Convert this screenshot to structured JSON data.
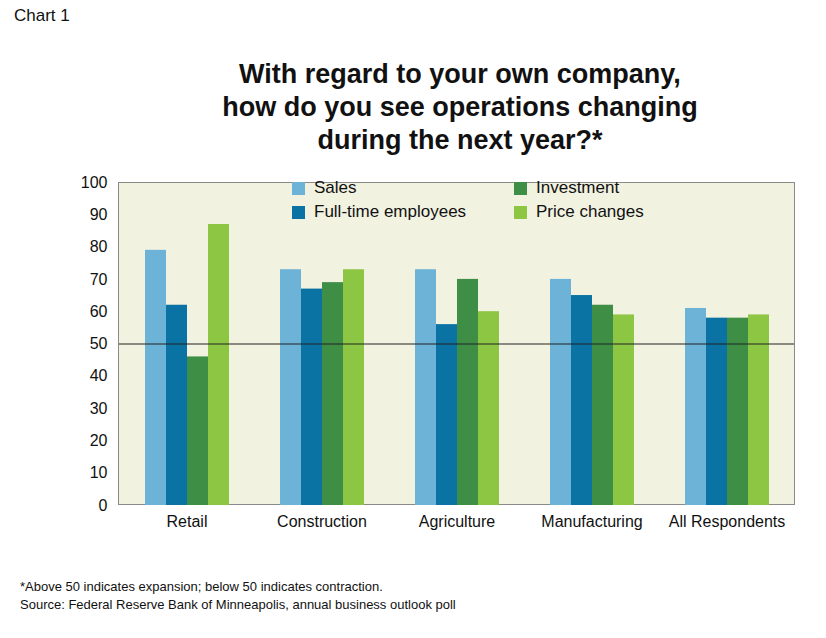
{
  "chart_data": {
    "type": "bar",
    "chart_label": "Chart 1",
    "title": "With regard to your own company,\nhow do you see operations changing\nduring the next year?*",
    "note": "*Above 50 indicates expansion; below 50 indicates contraction.",
    "source": "Source: Federal Reserve Bank of Minneapolis, annual business outlook poll",
    "categories": [
      "Retail",
      "Construction",
      "Agriculture",
      "Manufacturing",
      "All Respondents"
    ],
    "series": [
      {
        "name": "Sales",
        "color": "#6db3d8",
        "values": [
          79,
          73,
          73,
          70,
          61
        ]
      },
      {
        "name": "Full-time employees",
        "color": "#0a73a3",
        "values": [
          62,
          67,
          56,
          65,
          58
        ]
      },
      {
        "name": "Investment",
        "color": "#3e8e46",
        "values": [
          46,
          69,
          70,
          62,
          58
        ]
      },
      {
        "name": "Price changes",
        "color": "#8cc643",
        "values": [
          87,
          73,
          60,
          59,
          59
        ]
      }
    ],
    "reference_line": 50,
    "ylim": [
      0,
      100
    ],
    "yticks": [
      0,
      10,
      20,
      30,
      40,
      50,
      60,
      70,
      80,
      90,
      100
    ],
    "legend": "top",
    "grid": false
  }
}
